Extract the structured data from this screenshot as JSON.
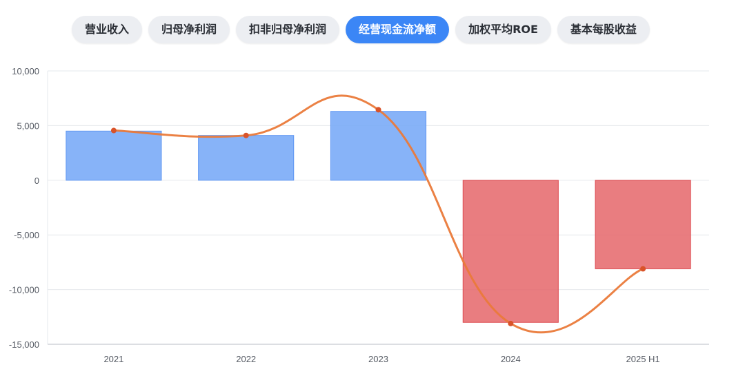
{
  "tabs": [
    {
      "label": "营业收入",
      "active": false
    },
    {
      "label": "归母净利润",
      "active": false
    },
    {
      "label": "扣非归母净利润",
      "active": false
    },
    {
      "label": "经营现金流净额",
      "active": true
    },
    {
      "label": "加权平均ROE",
      "active": false
    },
    {
      "label": "基本每股收益",
      "active": false
    }
  ],
  "colors": {
    "tab_active": "#3b86f6",
    "tab_inactive": "#eceef2",
    "bar_positive": "#7aabf7",
    "bar_negative": "#e5666a",
    "line": "#ea7a3a",
    "point": "#d9532a"
  },
  "chart_data": {
    "type": "bar",
    "categories": [
      "2021",
      "2022",
      "2023",
      "2024",
      "2025 H1"
    ],
    "series": [
      {
        "type": "bar",
        "values": [
          4500,
          4100,
          6300,
          -13000,
          -8100
        ]
      },
      {
        "type": "line",
        "values": [
          4550,
          4100,
          6450,
          -13100,
          -8100
        ]
      }
    ],
    "ylim": [
      -15000,
      10000
    ],
    "yticks": [
      10000,
      5000,
      0,
      -5000,
      -10000,
      -15000
    ],
    "ytick_labels": [
      "10,000",
      "5,000",
      "0",
      "-5,000",
      "-10,000",
      "-15,000"
    ],
    "grid": true,
    "legend": "none",
    "title": "",
    "xlabel": "",
    "ylabel": ""
  }
}
